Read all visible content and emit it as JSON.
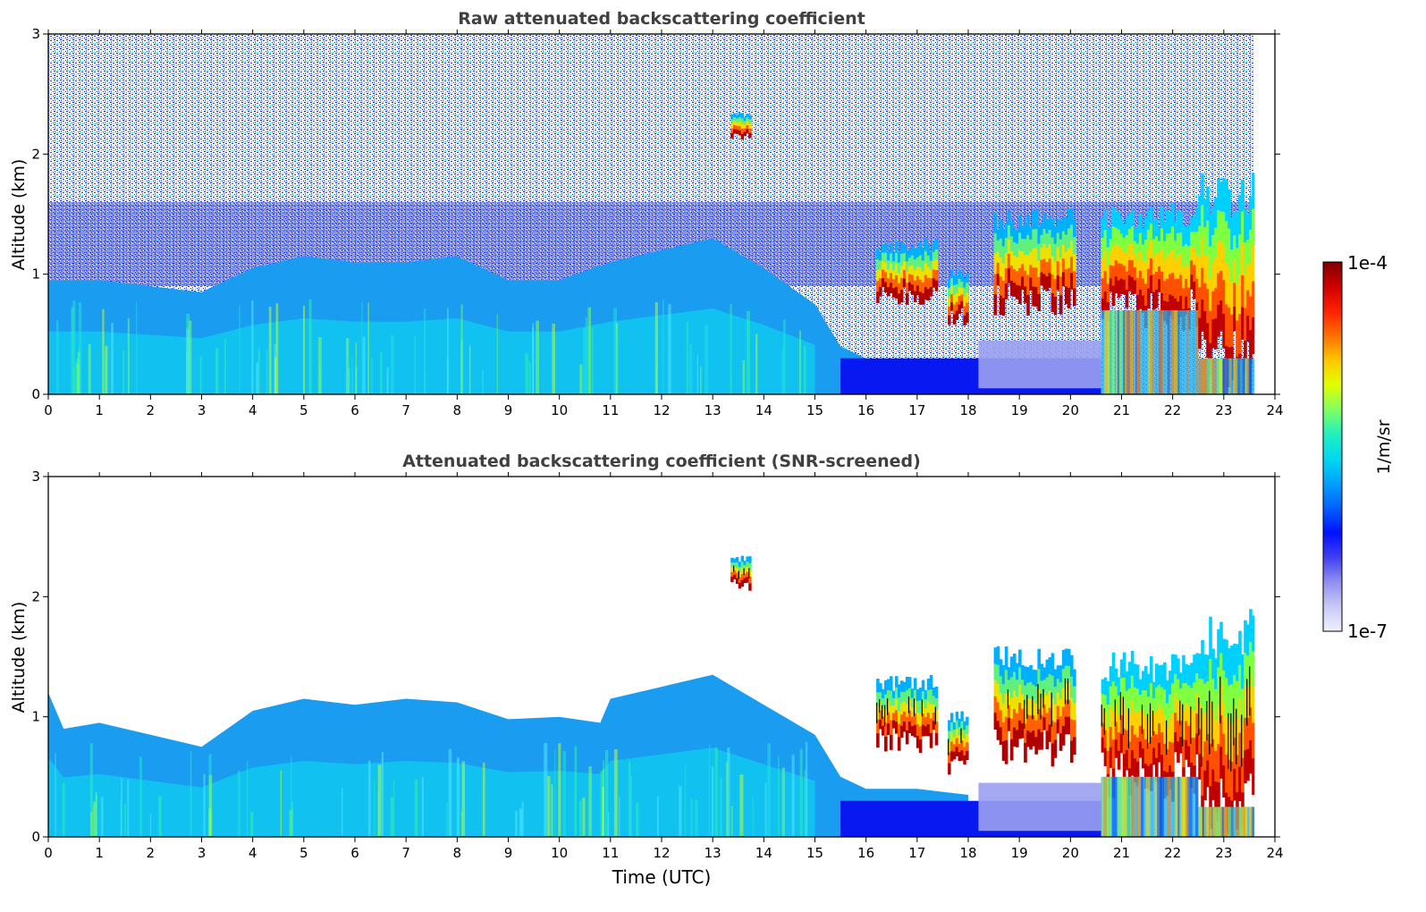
{
  "chart_data": [
    {
      "type": "heatmap",
      "title": "Raw attenuated backscattering coefficient",
      "xlabel": "",
      "ylabel": "Altitude (km)",
      "xlim": [
        0,
        24
      ],
      "ylim": [
        0,
        3
      ],
      "xticks": [
        0,
        1,
        2,
        3,
        4,
        5,
        6,
        7,
        8,
        9,
        10,
        11,
        12,
        13,
        14,
        15,
        16,
        17,
        18,
        19,
        20,
        21,
        22,
        23,
        24
      ],
      "yticks": [
        0,
        1,
        2,
        3
      ],
      "data_end_time": 23.6,
      "grid": false,
      "noise_floor": true,
      "boundary_layer_top_km": [
        [
          0,
          0.95
        ],
        [
          1,
          0.95
        ],
        [
          2,
          0.9
        ],
        [
          3,
          0.85
        ],
        [
          4,
          1.05
        ],
        [
          5,
          1.15
        ],
        [
          6,
          1.1
        ],
        [
          7,
          1.1
        ],
        [
          8,
          1.15
        ],
        [
          9,
          0.95
        ],
        [
          10,
          0.95
        ],
        [
          11,
          1.1
        ],
        [
          12,
          1.2
        ],
        [
          13,
          1.3
        ],
        [
          14,
          1.05
        ],
        [
          15,
          0.75
        ],
        [
          15.5,
          0.4
        ],
        [
          16,
          0.3
        ],
        [
          17,
          0.25
        ],
        [
          17.5,
          0.2
        ]
      ],
      "cloud_layers": [
        {
          "start": 13.35,
          "end": 13.75,
          "base_km": 2.15,
          "top_km": 2.35,
          "intensity": "high"
        },
        {
          "start": 16.2,
          "end": 17.4,
          "base_km": 0.8,
          "top_km": 1.3,
          "intensity": "high"
        },
        {
          "start": 17.6,
          "end": 18.0,
          "base_km": 0.65,
          "top_km": 1.05,
          "intensity": "high"
        },
        {
          "start": 18.5,
          "end": 20.1,
          "base_km": 0.8,
          "top_km": 1.55,
          "intensity": "high"
        },
        {
          "start": 20.6,
          "end": 22.5,
          "base_km": 0.7,
          "top_km": 1.6,
          "intensity": "very high"
        },
        {
          "start": 22.5,
          "end": 23.6,
          "base_km": 0.3,
          "top_km": 1.85,
          "intensity": "very high"
        }
      ]
    },
    {
      "type": "heatmap",
      "title": "Attenuated backscattering coefficient (SNR-screened)",
      "xlabel": "Time (UTC)",
      "ylabel": "Altitude (km)",
      "xlim": [
        0,
        24
      ],
      "ylim": [
        0,
        3
      ],
      "xticks": [
        0,
        1,
        2,
        3,
        4,
        5,
        6,
        7,
        8,
        9,
        10,
        11,
        12,
        13,
        14,
        15,
        16,
        17,
        18,
        19,
        20,
        21,
        22,
        23,
        24
      ],
      "yticks": [
        0,
        1,
        2,
        3
      ],
      "data_end_time": 23.6,
      "grid": false,
      "noise_floor": false,
      "boundary_layer_top_km": [
        [
          0,
          1.2
        ],
        [
          0.3,
          0.9
        ],
        [
          1,
          0.95
        ],
        [
          2,
          0.85
        ],
        [
          3,
          0.75
        ],
        [
          4,
          1.05
        ],
        [
          5,
          1.15
        ],
        [
          6,
          1.1
        ],
        [
          7,
          1.15
        ],
        [
          8,
          1.12
        ],
        [
          9,
          0.98
        ],
        [
          10,
          1.0
        ],
        [
          10.8,
          0.95
        ],
        [
          11,
          1.15
        ],
        [
          12,
          1.25
        ],
        [
          13,
          1.35
        ],
        [
          14,
          1.1
        ],
        [
          15,
          0.85
        ],
        [
          15.5,
          0.5
        ],
        [
          16,
          0.4
        ],
        [
          17,
          0.4
        ],
        [
          18,
          0.35
        ]
      ],
      "cloud_layers": [
        {
          "start": 13.35,
          "end": 13.75,
          "base_km": 2.1,
          "top_km": 2.35,
          "intensity": "high"
        },
        {
          "start": 16.2,
          "end": 17.4,
          "base_km": 0.8,
          "top_km": 1.35,
          "intensity": "high"
        },
        {
          "start": 17.6,
          "end": 18.0,
          "base_km": 0.6,
          "top_km": 1.05,
          "intensity": "high"
        },
        {
          "start": 18.5,
          "end": 20.1,
          "base_km": 0.75,
          "top_km": 1.6,
          "intensity": "high"
        },
        {
          "start": 20.6,
          "end": 22.5,
          "base_km": 0.5,
          "top_km": 1.55,
          "intensity": "very high"
        },
        {
          "start": 22.5,
          "end": 23.6,
          "base_km": 0.25,
          "top_km": 1.9,
          "intensity": "very high"
        }
      ]
    }
  ],
  "colorbar": {
    "label": "1/m/sr",
    "max_label": "1e-4",
    "min_label": "1e-7",
    "colormap": [
      "#f0f0ff",
      "#c8c8f8",
      "#9090f0",
      "#4040f0",
      "#0010ff",
      "#0060ff",
      "#00a0ff",
      "#00d8f0",
      "#20f0c0",
      "#80ff60",
      "#e0ff00",
      "#ffc800",
      "#ff7000",
      "#ff2000",
      "#d00000",
      "#800000"
    ]
  }
}
